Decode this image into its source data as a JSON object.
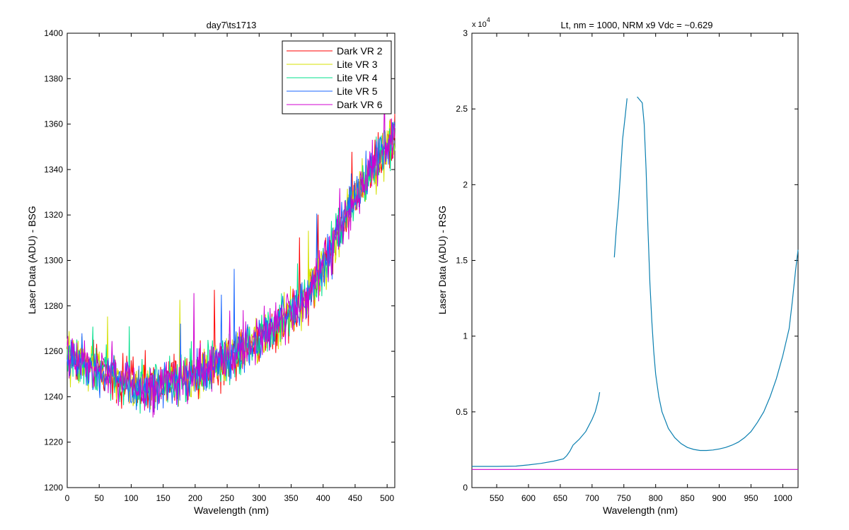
{
  "chart_data": [
    {
      "type": "line",
      "title": "day7\\ts1713",
      "xlabel": "Wavelength (nm)",
      "ylabel": "Laser Data (ADU) - BSG",
      "xlim": [
        0,
        512
      ],
      "ylim": [
        1200,
        1400
      ],
      "xticks": [
        "0",
        "50",
        "100",
        "150",
        "200",
        "250",
        "300",
        "350",
        "400",
        "450",
        "500"
      ],
      "yticks": [
        "1200",
        "1220",
        "1240",
        "1260",
        "1280",
        "1300",
        "1320",
        "1340",
        "1360",
        "1380",
        "1400"
      ],
      "grid": false,
      "legend": "top-right",
      "trend_x": [
        0,
        25,
        50,
        75,
        100,
        125,
        150,
        175,
        200,
        225,
        250,
        275,
        300,
        325,
        350,
        375,
        400,
        425,
        450,
        475,
        500,
        512
      ],
      "trend_y": [
        1258,
        1256,
        1252,
        1248,
        1245,
        1244,
        1245,
        1247,
        1250,
        1253,
        1257,
        1261,
        1266,
        1271,
        1277,
        1284,
        1297,
        1313,
        1327,
        1339,
        1350,
        1355
      ],
      "noise_amplitude": 9,
      "series": [
        {
          "name": "Dark VR 2",
          "color": "#ff0000"
        },
        {
          "name": "Lite VR 3",
          "color": "#d4e000"
        },
        {
          "name": "Lite VR 4",
          "color": "#00e08c"
        },
        {
          "name": "Lite VR 5",
          "color": "#1a66ff"
        },
        {
          "name": "Dark VR 6",
          "color": "#d000d0"
        }
      ]
    },
    {
      "type": "line",
      "title": "Lt, nm = 1000, NRM x9 Vdc = ~0.629",
      "xlabel": "Wavelength (nm)",
      "ylabel": "Laser Data (ADU) - RSG",
      "exponent_label": "x 10",
      "exponent_power": "4",
      "xlim": [
        511,
        1024
      ],
      "ylim": [
        0,
        30000
      ],
      "xticks": [
        "550",
        "600",
        "650",
        "700",
        "750",
        "800",
        "850",
        "900",
        "950",
        "1000"
      ],
      "yticks": [
        "0",
        "0.5",
        "1",
        "1.5",
        "2",
        "2.5",
        "3"
      ],
      "grid": false,
      "series": [
        {
          "color": "#0a7fb0",
          "segments": [
            {
              "x": [
                511,
                550,
                580,
                600,
                620,
                640,
                655,
                660,
                665,
                670,
                675,
                680,
                690,
                700,
                705,
                710,
                712
              ],
              "y": [
                1400,
                1400,
                1420,
                1500,
                1600,
                1750,
                1900,
                2100,
                2400,
                2800,
                3000,
                3200,
                3700,
                4500,
                5000,
                5800,
                6300
              ]
            },
            {
              "x": [
                735,
                738,
                742,
                745,
                748,
                752,
                755
              ],
              "y": [
                15200,
                17000,
                19000,
                21000,
                23000,
                24500,
                25700
              ]
            },
            {
              "x": [
                771,
                775,
                779,
                782,
                785,
                788,
                791,
                794,
                797,
                800,
                805,
                810,
                820,
                830,
                840,
                850,
                860,
                870,
                880,
                890,
                900,
                910,
                920,
                930,
                940,
                950,
                960,
                970,
                980,
                990,
                1000,
                1010,
                1015,
                1020,
                1024
              ],
              "y": [
                25800,
                25600,
                25400,
                24000,
                21000,
                17000,
                13500,
                11000,
                9000,
                7500,
                6000,
                5000,
                3900,
                3300,
                2900,
                2650,
                2520,
                2450,
                2450,
                2480,
                2550,
                2650,
                2800,
                3000,
                3300,
                3700,
                4300,
                5000,
                6000,
                7200,
                8700,
                10500,
                12300,
                14300,
                15700
              ]
            }
          ]
        },
        {
          "color": "#cc00cc",
          "segments": [
            {
              "x": [
                511,
                1024
              ],
              "y": [
                1200,
                1200
              ]
            }
          ]
        }
      ]
    }
  ]
}
